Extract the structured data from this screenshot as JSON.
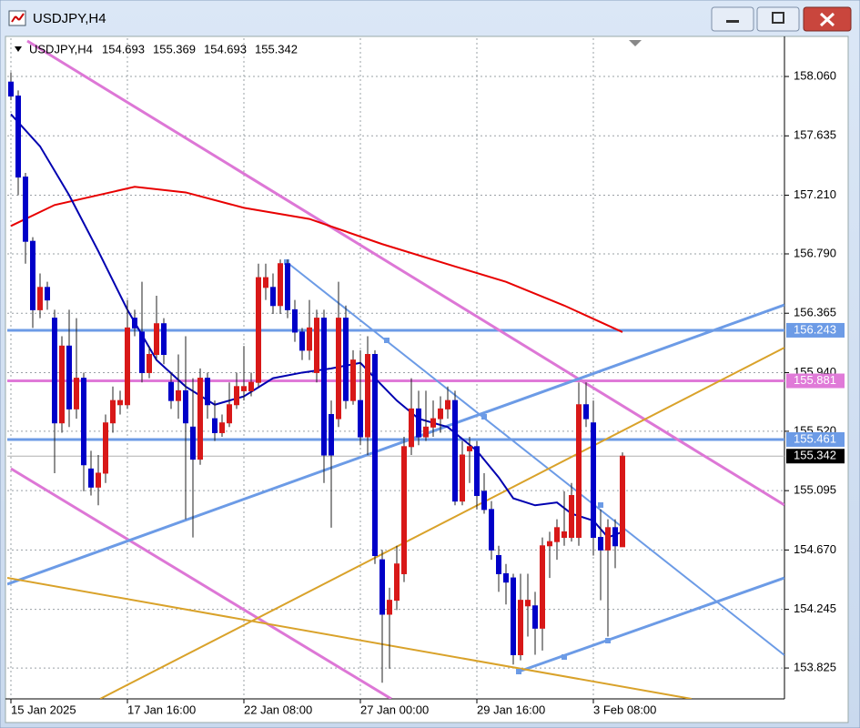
{
  "window": {
    "title": "USDJPY,H4"
  },
  "chart_data": {
    "type": "candlestick",
    "title": "USDJPY,H4",
    "categories": [
      "15 Jan 2025",
      null,
      null,
      null,
      null,
      null,
      null,
      null,
      null,
      null,
      null,
      null,
      null,
      null,
      null,
      null,
      "17 Jan 16:00",
      null,
      null,
      null,
      null,
      null,
      null,
      null,
      null,
      null,
      null,
      null,
      null,
      null,
      null,
      null,
      "22 Jan 08:00",
      null,
      null,
      null,
      null,
      null,
      null,
      null,
      null,
      null,
      null,
      null,
      null,
      null,
      null,
      null,
      "27 Jan 00:00",
      null,
      null,
      null,
      null,
      null,
      null,
      null,
      null,
      null,
      null,
      null,
      null,
      null,
      null,
      null,
      "29 Jan 16:00",
      null,
      null,
      null,
      null,
      null,
      null,
      null,
      null,
      null,
      null,
      null,
      null,
      null,
      null,
      null,
      "3 Feb 08:00",
      null,
      null,
      null,
      null
    ],
    "open": [
      158.02,
      157.92,
      157.34,
      156.88,
      156.39,
      156.55,
      156.33,
      155.58,
      156.13,
      155.68,
      155.9,
      155.25,
      155.12,
      155.22,
      155.58,
      155.71,
      155.71,
      156.33,
      156.23,
      155.94,
      156.07,
      156.29,
      155.87,
      155.74,
      155.81,
      155.55,
      155.32,
      155.9,
      155.61,
      155.51,
      155.58,
      155.71,
      155.81,
      155.81,
      155.87,
      156.55,
      156.55,
      156.42,
      156.72,
      156.39,
      156.23,
      156.1,
      155.94,
      156.33,
      155.64,
      155.61,
      156.33,
      155.74,
      155.74,
      155.48,
      156.07,
      154.6,
      154.21,
      154.31,
      154.5,
      155.41,
      155.68,
      155.48,
      155.55,
      155.61,
      155.68,
      155.74,
      155.02,
      155.38,
      155.41,
      155.09,
      154.96,
      154.63,
      154.5,
      154.47,
      153.92,
      154.27,
      154.27,
      154.11,
      154.7,
      154.73,
      154.76,
      154.76,
      154.76,
      155.71,
      155.58,
      154.76,
      154.67,
      154.83,
      154.693
    ],
    "high": [
      158.09,
      157.96,
      157.37,
      156.91,
      156.65,
      156.59,
      156.39,
      156.2,
      156.39,
      156.33,
      155.94,
      155.38,
      155.35,
      155.64,
      155.84,
      155.81,
      156.46,
      156.39,
      156.59,
      156.13,
      156.49,
      156.33,
      155.94,
      156.07,
      156.2,
      155.9,
      155.97,
      155.94,
      155.74,
      155.64,
      155.87,
      155.94,
      156.13,
      155.94,
      156.72,
      156.72,
      156.65,
      156.75,
      156.75,
      156.46,
      156.26,
      156.46,
      156.39,
      156.39,
      155.74,
      156.59,
      156.42,
      156.1,
      156.1,
      156.2,
      156.1,
      154.67,
      154.4,
      154.7,
      155.48,
      155.9,
      155.81,
      155.81,
      155.74,
      155.77,
      155.84,
      155.81,
      155.45,
      155.48,
      155.45,
      155.22,
      155.02,
      154.7,
      154.57,
      154.5,
      154.5,
      154.5,
      154.37,
      154.76,
      154.8,
      154.89,
      155.09,
      155.15,
      155.87,
      155.87,
      155.74,
      154.96,
      154.89,
      154.89,
      155.369
    ],
    "low": [
      157.89,
      157.21,
      156.72,
      156.26,
      156.33,
      156.39,
      155.22,
      155.51,
      155.55,
      155.61,
      155.09,
      155.06,
      154.99,
      155.15,
      155.51,
      155.64,
      155.68,
      156.2,
      155.87,
      155.9,
      156.03,
      156.0,
      155.68,
      155.61,
      154.89,
      154.76,
      155.28,
      155.61,
      155.45,
      155.48,
      155.55,
      155.68,
      155.74,
      155.77,
      155.84,
      156.46,
      156.36,
      156.36,
      156.33,
      156.16,
      156.03,
      156.03,
      155.87,
      155.15,
      154.83,
      155.55,
      155.68,
      155.71,
      155.42,
      155.35,
      154.57,
      153.72,
      153.82,
      154.24,
      154.44,
      155.35,
      155.42,
      155.45,
      155.48,
      155.51,
      155.61,
      154.99,
      154.99,
      155.15,
      154.96,
      154.93,
      154.6,
      154.37,
      154.28,
      153.85,
      153.88,
      154.05,
      153.92,
      153.95,
      154.47,
      154.6,
      154.7,
      154.73,
      154.7,
      155.55,
      154.63,
      154.31,
      154.05,
      154.54,
      154.693
    ],
    "close": [
      157.92,
      157.34,
      156.88,
      156.39,
      156.55,
      156.46,
      155.58,
      156.13,
      155.68,
      155.9,
      155.28,
      155.12,
      155.22,
      155.58,
      155.74,
      155.74,
      156.26,
      156.26,
      155.94,
      156.07,
      156.29,
      156.07,
      155.74,
      155.81,
      155.58,
      155.32,
      155.9,
      155.71,
      155.51,
      155.58,
      155.71,
      155.84,
      155.84,
      155.87,
      156.62,
      156.62,
      156.42,
      156.72,
      156.39,
      156.23,
      156.1,
      156.26,
      156.33,
      155.35,
      155.35,
      156.33,
      155.74,
      156.03,
      155.48,
      156.07,
      154.63,
      154.21,
      154.31,
      154.57,
      155.41,
      155.68,
      155.48,
      155.55,
      155.61,
      155.68,
      155.74,
      155.02,
      155.35,
      155.41,
      155.06,
      154.96,
      154.67,
      154.5,
      154.44,
      153.92,
      154.31,
      154.31,
      154.11,
      154.7,
      154.73,
      154.83,
      154.8,
      155.06,
      155.71,
      155.61,
      154.76,
      154.67,
      154.83,
      154.7,
      155.342
    ],
    "bull_color": "#d81818",
    "bear_color": "#0000c8",
    "wick_color": "#202020",
    "ylim": [
      153.604,
      158.334
    ],
    "yticks": [
      {
        "value": 158.06,
        "label": "158.060"
      },
      157.635,
      {
        "value": 157.21,
        "label": "157.210"
      },
      {
        "value": 156.79,
        "label": "156.790"
      },
      156.365,
      {
        "value": 155.94,
        "label": "155.940"
      },
      {
        "value": 155.52,
        "label": "155.520"
      },
      155.095,
      {
        "value": 154.67,
        "label": "154.670"
      },
      154.245,
      153.825
    ],
    "grid": true,
    "overlays": [
      {
        "color": "#e80000",
        "x": [
          0,
          6,
          17,
          24,
          32,
          41,
          51,
          61,
          68,
          76,
          84
        ],
        "values": [
          156.99,
          157.14,
          157.27,
          157.23,
          157.12,
          157.04,
          156.86,
          156.7,
          156.59,
          156.42,
          156.23
        ]
      },
      {
        "color": "#0000b0",
        "x": [
          0,
          4,
          8,
          12,
          16,
          20,
          24,
          28,
          32,
          36,
          40,
          44,
          48,
          50,
          53,
          56,
          60,
          64,
          67,
          69,
          72,
          75,
          77,
          80,
          82,
          84
        ],
        "values": [
          157.79,
          157.56,
          157.21,
          156.81,
          156.39,
          156.03,
          155.84,
          155.71,
          155.77,
          155.9,
          155.94,
          155.97,
          156.01,
          155.9,
          155.74,
          155.61,
          155.55,
          155.38,
          155.19,
          155.04,
          154.99,
          155.01,
          154.93,
          154.88,
          154.76,
          154.8
        ]
      }
    ],
    "hlines": [
      {
        "value": 156.243,
        "color": "#6c9be6"
      },
      {
        "value": 155.881,
        "color": "#e07ad8"
      },
      {
        "value": 155.461,
        "color": "#6c9be6"
      }
    ]
  }
}
